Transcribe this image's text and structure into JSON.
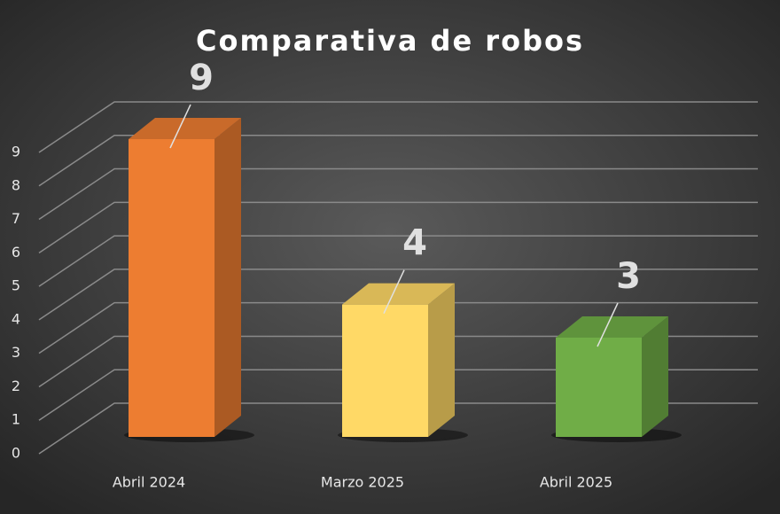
{
  "chart_data": {
    "type": "bar3d",
    "title": "Comparativa de robos",
    "categories": [
      "Abril 2024",
      "Marzo 2025",
      "Abril 2025"
    ],
    "values": [
      9,
      4,
      3
    ],
    "colors": [
      "#ed7d31",
      "#ffd966",
      "#70ad47"
    ],
    "ylim": [
      0,
      9
    ],
    "yticks": [
      0,
      1,
      2,
      3,
      4,
      5,
      6,
      7,
      8,
      9
    ],
    "grid": true
  }
}
